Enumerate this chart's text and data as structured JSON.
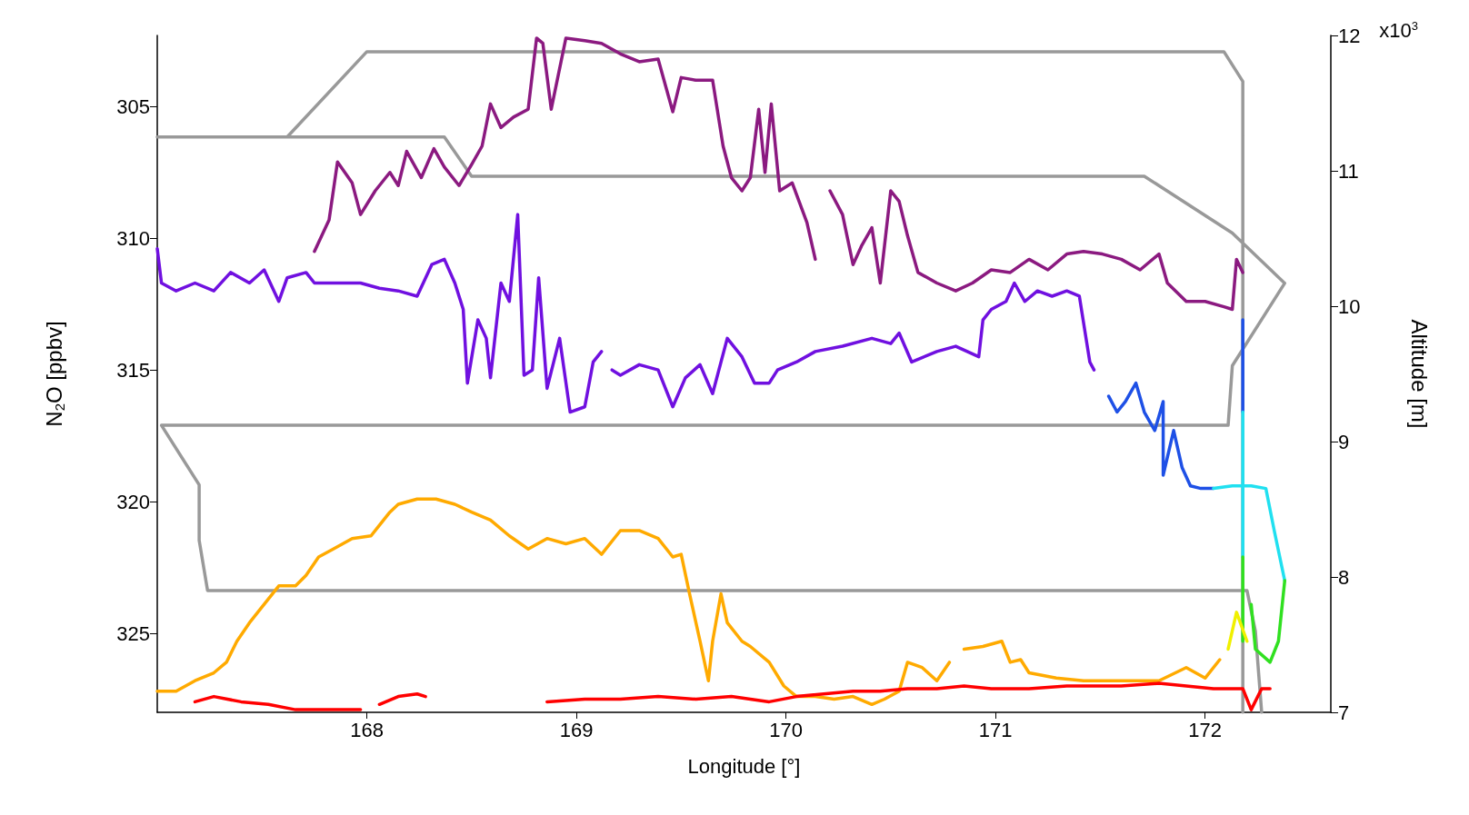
{
  "chart_data": {
    "type": "line",
    "xlabel": "Longitude [°]",
    "ylabel": "N$_{2}$O [ppbv]",
    "y2label": "Altitude [m]",
    "xlim": [
      167,
      172.6
    ],
    "xticks": [
      168,
      169,
      170,
      171,
      172
    ],
    "ylim": [
      328,
      302.3
    ],
    "yticks": [
      305,
      310,
      315,
      320,
      325
    ],
    "y2lim": [
      7,
      12
    ],
    "y2ticks": [
      7,
      8,
      9,
      10,
      11,
      12
    ],
    "annotations": [
      "x10$^{3}$"
    ],
    "marker": "none",
    "line_style": "solid",
    "grid": false,
    "series": [
      {
        "color": "#999999",
        "axis": "y2",
        "x": [
          167.0,
          168.37,
          168.5,
          171.71,
          172.13,
          172.38,
          172.13,
          172.11,
          167.02,
          167.2,
          167.2,
          167.24,
          172.2,
          172.24,
          172.27,
          null,
          167.62,
          168.0,
          172.09,
          172.18,
          172.18
        ],
        "values": [
          11.25,
          11.25,
          10.96,
          10.96,
          10.54,
          10.17,
          9.56,
          9.12,
          9.12,
          8.68,
          8.27,
          7.9,
          7.9,
          7.6,
          7.0,
          null,
          11.25,
          11.88,
          11.88,
          11.66,
          7.0
        ]
      },
      {
        "color": "#8b1a80",
        "x": [
          167.75,
          167.82,
          167.86,
          167.93,
          167.97,
          168.04,
          168.11,
          168.15,
          168.19,
          168.26,
          168.32,
          168.37,
          168.44,
          168.5,
          168.55,
          168.59,
          168.64,
          168.7,
          168.77,
          168.81,
          168.84,
          168.88,
          168.95,
          169.04,
          169.12,
          169.21,
          169.3,
          169.39,
          169.46,
          169.5,
          169.57,
          169.65,
          169.7,
          169.74,
          169.79,
          169.83,
          169.87,
          169.9,
          169.93,
          169.97,
          170.03,
          170.1,
          170.14,
          170.18,
          170.21,
          170.27,
          170.32,
          170.36,
          170.41,
          170.45,
          170.5,
          170.54,
          170.58,
          170.63,
          170.72,
          170.81,
          170.89,
          170.98,
          171.07,
          171.16,
          171.25,
          171.34,
          171.42,
          171.51,
          171.6,
          171.69,
          171.78,
          171.82,
          171.91,
          172.0,
          172.09,
          172.13,
          172.15,
          172.18
        ],
        "values": [
          310.5,
          309.3,
          307.1,
          307.9,
          309.1,
          308.2,
          307.5,
          308.0,
          306.7,
          307.7,
          306.6,
          307.3,
          308.0,
          307.2,
          306.5,
          304.9,
          305.8,
          305.4,
          305.1,
          302.4,
          302.6,
          305.1,
          302.4,
          302.5,
          302.6,
          303.0,
          303.3,
          303.2,
          305.2,
          303.9,
          304.0,
          304.0,
          306.5,
          307.7,
          308.2,
          307.7,
          305.1,
          307.5,
          304.9,
          308.2,
          307.9,
          309.4,
          310.8,
          null,
          308.2,
          309.1,
          311.0,
          310.3,
          309.6,
          311.7,
          308.2,
          308.6,
          309.9,
          311.3,
          311.7,
          312.0,
          311.7,
          311.2,
          311.3,
          310.8,
          311.2,
          310.6,
          310.5,
          310.6,
          310.8,
          311.2,
          310.6,
          311.7,
          312.4,
          312.4,
          312.6,
          312.7,
          310.8,
          311.3
        ]
      },
      {
        "color": "#7010e0",
        "x": [
          167.0,
          167.02,
          167.09,
          167.18,
          167.27,
          167.35,
          167.44,
          167.51,
          167.58,
          167.62,
          167.71,
          167.75,
          167.84,
          167.97,
          168.06,
          168.15,
          168.24,
          168.31,
          168.37,
          168.42,
          168.46,
          168.48,
          168.53,
          168.57,
          168.59,
          168.64,
          168.68,
          168.72,
          168.75,
          168.79,
          168.82,
          168.86,
          168.92,
          168.97,
          169.04,
          169.08,
          169.12,
          169.15,
          169.17,
          169.21,
          169.3,
          169.39,
          169.46,
          169.52,
          169.59,
          169.65,
          169.72,
          169.79,
          169.85,
          169.92,
          169.96,
          170.05,
          170.14,
          170.27,
          170.41,
          170.5,
          170.54,
          170.6,
          170.72,
          170.81,
          170.92,
          170.94,
          170.98,
          171.05,
          171.09,
          171.14,
          171.2,
          171.27,
          171.34,
          171.4,
          171.45,
          171.47
        ],
        "values": [
          310.4,
          311.7,
          312.0,
          311.7,
          312.0,
          311.3,
          311.7,
          311.2,
          312.4,
          311.5,
          311.3,
          311.7,
          311.7,
          311.7,
          311.9,
          312.0,
          312.2,
          311.0,
          310.8,
          311.7,
          312.7,
          315.5,
          313.1,
          313.8,
          315.3,
          311.7,
          312.4,
          309.1,
          315.2,
          315.0,
          311.5,
          315.7,
          313.8,
          316.6,
          316.4,
          314.7,
          314.3,
          null,
          315.0,
          315.2,
          314.8,
          315.0,
          316.4,
          315.3,
          314.8,
          315.9,
          313.8,
          314.5,
          315.5,
          315.5,
          315.0,
          314.7,
          314.3,
          314.1,
          313.8,
          314.0,
          313.6,
          314.7,
          314.3,
          314.1,
          314.5,
          313.1,
          312.7,
          312.4,
          311.7,
          312.4,
          312.0,
          312.2,
          312.0,
          312.2,
          314.7,
          315.0
        ]
      },
      {
        "color": "#1e50e6",
        "x": [
          171.54,
          171.58,
          171.62,
          171.67,
          171.71,
          171.76,
          171.8,
          171.8,
          171.85,
          171.89,
          171.93,
          171.98,
          172.04,
          172.1,
          172.18,
          172.18
        ],
        "values": [
          316.0,
          316.6,
          316.2,
          315.5,
          316.6,
          317.3,
          316.2,
          319.0,
          317.3,
          318.7,
          319.4,
          319.5,
          319.5,
          null,
          313.1,
          316.6
        ]
      },
      {
        "color": "#20e0f0",
        "x": [
          172.04,
          172.13,
          172.22,
          172.29,
          172.33,
          172.38,
          172.35,
          172.18,
          172.18
        ],
        "values": [
          319.5,
          319.4,
          319.4,
          319.5,
          321.1,
          323.0,
          null,
          316.6,
          322.1
        ]
      },
      {
        "color": "#30e020",
        "x": [
          172.38,
          172.35,
          172.31,
          172.24,
          172.22,
          172.2,
          172.18,
          172.18
        ],
        "values": [
          323.0,
          325.3,
          326.1,
          325.6,
          323.9,
          null,
          322.1,
          325.3
        ]
      },
      {
        "color": "#f0f000",
        "x": [
          172.11,
          172.15,
          172.2
        ],
        "values": [
          325.6,
          324.2,
          325.3
        ]
      },
      {
        "color": "#ffaa00",
        "x": [
          167.0,
          167.09,
          167.18,
          167.27,
          167.33,
          167.38,
          167.44,
          167.49,
          167.58,
          167.66,
          167.71,
          167.77,
          167.84,
          167.93,
          168.02,
          168.06,
          168.11,
          168.15,
          168.24,
          168.33,
          168.42,
          168.5,
          168.59,
          168.68,
          168.77,
          168.86,
          168.95,
          169.04,
          169.12,
          169.21,
          169.3,
          169.39,
          169.46,
          169.5,
          169.54,
          169.59,
          169.63,
          169.65,
          169.69,
          169.72,
          169.79,
          169.83,
          169.92,
          169.99,
          170.05,
          170.14,
          170.23,
          170.32,
          170.41,
          170.47,
          170.54,
          170.58,
          170.65,
          170.72,
          170.78,
          170.81,
          170.85,
          170.94,
          171.03,
          171.07,
          171.12,
          171.16,
          171.29,
          171.42,
          171.6,
          171.78,
          171.91,
          172.0,
          172.07
        ],
        "values": [
          327.2,
          327.2,
          326.8,
          326.5,
          326.1,
          325.3,
          324.6,
          324.1,
          323.2,
          323.2,
          322.8,
          322.1,
          321.8,
          321.4,
          321.3,
          320.9,
          320.4,
          320.1,
          319.9,
          319.9,
          320.1,
          320.4,
          320.7,
          321.3,
          321.8,
          321.4,
          321.6,
          321.4,
          322.0,
          321.1,
          321.1,
          321.4,
          322.1,
          322.0,
          323.5,
          325.3,
          326.8,
          325.3,
          323.5,
          324.6,
          325.3,
          325.5,
          326.1,
          327.0,
          327.4,
          327.4,
          327.5,
          327.4,
          327.7,
          327.5,
          327.2,
          326.1,
          326.3,
          326.8,
          326.1,
          null,
          325.6,
          325.5,
          325.3,
          326.1,
          326.0,
          326.5,
          326.7,
          326.8,
          326.8,
          326.8,
          326.3,
          326.7,
          326.0
        ]
      },
      {
        "color": "#ff0000",
        "x": [
          167.18,
          167.27,
          167.4,
          167.53,
          167.66,
          167.8,
          167.93,
          167.97,
          168.0,
          168.06,
          168.15,
          168.24,
          168.28,
          168.5,
          168.86,
          169.04,
          169.21,
          169.39,
          169.57,
          169.74,
          169.92,
          170.05,
          170.18,
          170.32,
          170.45,
          170.58,
          170.72,
          170.85,
          170.98,
          171.16,
          171.34,
          171.47,
          171.6,
          171.78,
          171.91,
          172.04,
          172.18,
          172.22,
          172.27,
          172.31
        ],
        "values": [
          327.6,
          327.4,
          327.6,
          327.7,
          327.9,
          327.9,
          327.9,
          327.9,
          null,
          327.7,
          327.4,
          327.3,
          327.4,
          null,
          327.6,
          327.5,
          327.5,
          327.4,
          327.5,
          327.4,
          327.6,
          327.4,
          327.3,
          327.2,
          327.2,
          327.1,
          327.1,
          327.0,
          327.1,
          327.1,
          327.0,
          327.0,
          327.0,
          326.9,
          327.0,
          327.1,
          327.1,
          327.9,
          327.1,
          327.1
        ]
      }
    ]
  }
}
